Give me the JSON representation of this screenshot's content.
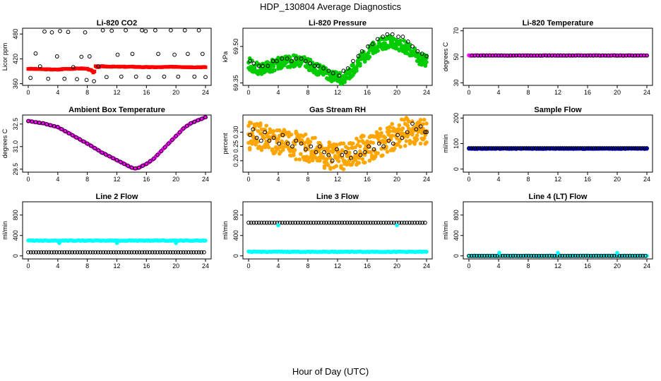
{
  "figure": {
    "title": "HDP_130804  Average Diagnostics",
    "xlabel": "Hour of Day (UTC)"
  },
  "colors": {
    "red": "#ff0000",
    "green": "#00cc00",
    "magenta": "#ff00ff",
    "orange": "#ffa500",
    "blue": "#0000ff",
    "cyan": "#00ffff",
    "black": "#000000"
  },
  "chart_data": [
    {
      "type": "scatter",
      "title": "Li-820 CO2",
      "ylabel": "Licor ppm",
      "x_ticks": [
        "0",
        "4",
        "8",
        "12",
        "16",
        "20",
        "24"
      ],
      "xlim": [
        0,
        24
      ],
      "y_ticks": [
        {
          "v": 360,
          "label": "360"
        },
        {
          "v": 420,
          "label": "420"
        },
        {
          "v": 480,
          "label": "480"
        }
      ],
      "ylim": [
        356,
        494
      ],
      "series": [
        {
          "color": "red",
          "dense": true,
          "shape": "square",
          "x": [
            0,
            2,
            4,
            5,
            6,
            7,
            8,
            8.6,
            8.9,
            9.1,
            9.3,
            10,
            12,
            14,
            16,
            18,
            20,
            22,
            24
          ],
          "y": [
            396,
            395,
            394,
            396,
            396,
            397,
            396,
            392,
            384,
            402,
            400,
            402,
            401,
            401,
            400,
            400,
            401,
            400,
            400
          ]
        },
        {
          "color": "black",
          "dense": false,
          "shape": "circle",
          "x": [
            0.3,
            1,
            1.6,
            2.2,
            2.7,
            3.2,
            3.9,
            4.3,
            4.9,
            5.4,
            6.1,
            6.6,
            7.2,
            7.7,
            7.9,
            8.3,
            8.9,
            9.5,
            10.1,
            10.6,
            11.3,
            12.1,
            12.6,
            13.2,
            14.1,
            14.6,
            15.4,
            15.9,
            16.3,
            17.2,
            17.6,
            18.4,
            19.3,
            19.8,
            20.3,
            21.2,
            21.6,
            22.5,
            23.1,
            23.6,
            24
          ],
          "y": [
            374,
            433,
            402,
            486,
            372,
            484,
            426,
            487,
            372,
            485,
            400,
            371,
            425,
            484,
            369,
            426,
            366,
            402,
            489,
            376,
            488,
            430,
            377,
            489,
            432,
            377,
            489,
            487,
            376,
            489,
            432,
            377,
            489,
            430,
            377,
            489,
            432,
            377,
            489,
            432,
            376
          ]
        }
      ]
    },
    {
      "type": "scatter",
      "title": "Li-820 Pressure",
      "ylabel": "kPa",
      "x_ticks": [
        "0",
        "4",
        "8",
        "12",
        "16",
        "20",
        "24"
      ],
      "xlim": [
        0,
        24
      ],
      "y_ticks": [
        {
          "v": 69.35,
          "label": "69.35"
        },
        {
          "v": 69.5,
          "label": "69.50"
        }
      ],
      "ylim": [
        69.34,
        69.575
      ],
      "series": [
        {
          "color": "green",
          "dense": true,
          "shape": "circle",
          "band": 0.025,
          "x": [
            0,
            1,
            2,
            3,
            4,
            5,
            6,
            7,
            8,
            9,
            10,
            11,
            12,
            13,
            14,
            15,
            16,
            17,
            18,
            19,
            20,
            21,
            22,
            23,
            24
          ],
          "y": [
            69.43,
            69.41,
            69.41,
            69.42,
            69.43,
            69.44,
            69.44,
            69.44,
            69.43,
            69.41,
            69.4,
            69.38,
            69.37,
            69.37,
            69.4,
            69.44,
            69.47,
            69.5,
            69.51,
            69.52,
            69.51,
            69.5,
            69.48,
            69.45,
            69.44
          ]
        },
        {
          "color": "black",
          "dense": false,
          "shape": "circle",
          "x": [
            0.2,
            0.7,
            1.4,
            1.9,
            2.6,
            3.3,
            3.8,
            4.5,
            5.2,
            5.8,
            6.4,
            7.1,
            7.7,
            8.3,
            8.9,
            9.4,
            10.1,
            10.8,
            11.4,
            12.2,
            12.8,
            13.4,
            14.1,
            14.8,
            15.3,
            16.1,
            16.7,
            17.4,
            18.1,
            18.7,
            19.4,
            20.2,
            20.8,
            21.5,
            22.1,
            22.8,
            23.4,
            24
          ],
          "y": [
            69.44,
            69.43,
            69.42,
            69.42,
            69.42,
            69.44,
            69.44,
            69.45,
            69.45,
            69.44,
            69.45,
            69.45,
            69.44,
            69.43,
            69.42,
            69.42,
            69.41,
            69.4,
            69.39,
            69.38,
            69.4,
            69.41,
            69.44,
            69.46,
            69.48,
            69.5,
            69.51,
            69.53,
            69.54,
            69.55,
            69.55,
            69.54,
            69.54,
            69.52,
            69.5,
            69.48,
            69.47,
            69.46
          ]
        }
      ]
    },
    {
      "type": "scatter",
      "title": "Li-820 Temperature",
      "ylabel": "degrees C",
      "x_ticks": [
        "0",
        "4",
        "8",
        "12",
        "16",
        "20",
        "24"
      ],
      "xlim": [
        0,
        24
      ],
      "y_ticks": [
        {
          "v": 30,
          "label": "30"
        },
        {
          "v": 50,
          "label": "50"
        },
        {
          "v": 70,
          "label": "70"
        }
      ],
      "ylim": [
        28,
        72
      ],
      "series": [
        {
          "color": "magenta",
          "dense": true,
          "shape": "circle",
          "x": [
            0,
            24
          ],
          "y": [
            51,
            51
          ]
        },
        {
          "color": "black",
          "dense": false,
          "shape": "circle",
          "step": 0.4,
          "x": [
            0.4,
            24
          ],
          "y": [
            51,
            51
          ]
        }
      ]
    },
    {
      "type": "scatter",
      "title": "Ambient Box Temperature",
      "ylabel": "degrees C",
      "x_ticks": [
        "0",
        "4",
        "8",
        "12",
        "16",
        "20",
        "24"
      ],
      "xlim": [
        0,
        24
      ],
      "y_ticks": [
        {
          "v": 29.5,
          "label": "29.5"
        },
        {
          "v": 31,
          "label": "31.0"
        },
        {
          "v": 32.5,
          "label": "32.5"
        }
      ],
      "ylim": [
        29.3,
        33.1
      ],
      "series": [
        {
          "color": "magenta",
          "dense": true,
          "shape": "circle",
          "x": [
            0,
            2,
            4,
            6,
            8,
            10,
            12,
            13,
            14,
            14.5,
            15,
            16,
            17,
            18,
            19,
            20,
            21,
            22,
            23,
            24
          ],
          "y": [
            32.7,
            32.55,
            32.3,
            31.75,
            31.2,
            30.6,
            30.1,
            29.85,
            29.6,
            29.55,
            29.6,
            29.85,
            30.2,
            30.7,
            31.2,
            31.7,
            32.2,
            32.55,
            32.75,
            32.95
          ]
        },
        {
          "color": "black",
          "dense": false,
          "shape": "circle",
          "step": 0.5,
          "x": [
            0,
            2,
            4,
            6,
            8,
            10,
            12,
            13,
            14,
            14.5,
            15,
            16,
            17,
            18,
            19,
            20,
            21,
            22,
            23,
            24
          ],
          "y": [
            32.7,
            32.55,
            32.3,
            31.75,
            31.2,
            30.6,
            30.1,
            29.85,
            29.6,
            29.55,
            29.6,
            29.85,
            30.2,
            30.7,
            31.2,
            31.7,
            32.2,
            32.55,
            32.75,
            32.95
          ]
        }
      ]
    },
    {
      "type": "scatter",
      "title": "Gas Stream RH",
      "ylabel": "percent",
      "x_ticks": [
        "0",
        "4",
        "8",
        "12",
        "16",
        "20",
        "24"
      ],
      "xlim": [
        0,
        24
      ],
      "y_ticks": [
        {
          "v": 0.2,
          "label": "0.20"
        },
        {
          "v": 0.25,
          "label": "0.25"
        },
        {
          "v": 0.3,
          "label": "0.30"
        }
      ],
      "ylim": [
        0.16,
        0.36
      ],
      "series": [
        {
          "color": "orange",
          "dense": true,
          "shape": "circle",
          "band": 0.05,
          "x": [
            0,
            2,
            4,
            6,
            8,
            10,
            11,
            12,
            13,
            14,
            16,
            18,
            20,
            22,
            24
          ],
          "y": [
            0.285,
            0.28,
            0.27,
            0.255,
            0.245,
            0.225,
            0.215,
            0.21,
            0.215,
            0.225,
            0.245,
            0.265,
            0.29,
            0.31,
            0.3
          ]
        },
        {
          "color": "black",
          "dense": false,
          "shape": "circle",
          "x": [
            0.2,
            0.6,
            1.1,
            1.7,
            2.2,
            2.8,
            3.4,
            4.1,
            4.6,
            5.3,
            5.9,
            6.4,
            7.1,
            7.7,
            8.4,
            9.1,
            9.6,
            10.2,
            10.8,
            11.3,
            11.9,
            12.6,
            13.1,
            13.8,
            14.4,
            15.1,
            15.7,
            16.2,
            16.9,
            17.6,
            18.2,
            18.9,
            19.5,
            20.1,
            20.7,
            21.4,
            22.1,
            22.6,
            23.2,
            23.8,
            24
          ],
          "y": [
            0.29,
            0.31,
            0.28,
            0.27,
            0.3,
            0.27,
            0.28,
            0.26,
            0.29,
            0.26,
            0.25,
            0.27,
            0.26,
            0.24,
            0.25,
            0.23,
            0.25,
            0.23,
            0.22,
            0.2,
            0.24,
            0.22,
            0.23,
            0.21,
            0.23,
            0.22,
            0.23,
            0.25,
            0.24,
            0.26,
            0.25,
            0.27,
            0.26,
            0.29,
            0.28,
            0.3,
            0.33,
            0.31,
            0.32,
            0.3,
            0.3
          ]
        }
      ]
    },
    {
      "type": "scatter",
      "title": "Sample Flow",
      "ylabel": "ml/min",
      "x_ticks": [
        "0",
        "4",
        "8",
        "12",
        "16",
        "20",
        "24"
      ],
      "xlim": [
        0,
        24
      ],
      "y_ticks": [
        {
          "v": 0,
          "label": "0"
        },
        {
          "v": 100,
          "label": "100"
        },
        {
          "v": 200,
          "label": "200"
        }
      ],
      "ylim": [
        -12,
        212
      ],
      "series": [
        {
          "color": "blue",
          "dense": true,
          "shape": "circle",
          "x": [
            0,
            24
          ],
          "y": [
            80,
            80
          ]
        },
        {
          "color": "black",
          "dense": false,
          "shape": "circle",
          "step": 0.3,
          "x": [
            0,
            24
          ],
          "y": [
            82,
            82
          ]
        }
      ]
    },
    {
      "type": "scatter",
      "title": "Line 2 Flow",
      "ylabel": "ml/min",
      "x_ticks": [
        "0",
        "4",
        "8",
        "12",
        "16",
        "20",
        "24"
      ],
      "xlim": [
        0,
        24
      ],
      "y_ticks": [
        {
          "v": 0,
          "label": "0"
        },
        {
          "v": 400,
          "label": "400"
        },
        {
          "v": 800,
          "label": "800"
        }
      ],
      "ylim": [
        -60,
        1060
      ],
      "series": [
        {
          "color": "cyan",
          "dense": true,
          "shape": "circle",
          "x": [
            0,
            24
          ],
          "y": [
            300,
            300
          ]
        },
        {
          "color": "black",
          "dense": false,
          "shape": "circle",
          "step": 0.35,
          "x": [
            0,
            24
          ],
          "y": [
            70,
            70
          ]
        }
      ]
    },
    {
      "type": "scatter",
      "title": "Line 3 Flow",
      "ylabel": "ml/min",
      "x_ticks": [
        "0",
        "4",
        "8",
        "12",
        "16",
        "20",
        "24"
      ],
      "xlim": [
        0,
        24
      ],
      "y_ticks": [
        {
          "v": 0,
          "label": "0"
        },
        {
          "v": 400,
          "label": "400"
        },
        {
          "v": 800,
          "label": "800"
        }
      ],
      "ylim": [
        -60,
        1060
      ],
      "series": [
        {
          "color": "cyan",
          "dense": true,
          "shape": "circle",
          "x": [
            0,
            24
          ],
          "y": [
            80,
            80
          ]
        },
        {
          "color": "black",
          "dense": false,
          "shape": "circle",
          "step": 0.35,
          "x": [
            0,
            24
          ],
          "y": [
            650,
            650
          ]
        }
      ]
    },
    {
      "type": "scatter",
      "title": "Line 4 (LT) Flow",
      "ylabel": "ml/min",
      "x_ticks": [
        "0",
        "4",
        "8",
        "12",
        "16",
        "20",
        "24"
      ],
      "xlim": [
        0,
        24
      ],
      "y_ticks": [
        {
          "v": 0,
          "label": "0"
        },
        {
          "v": 400,
          "label": "400"
        },
        {
          "v": 800,
          "label": "800"
        }
      ],
      "ylim": [
        -60,
        1060
      ],
      "series": [
        {
          "color": "cyan",
          "dense": true,
          "shape": "circle",
          "x": [
            0,
            24
          ],
          "y": [
            0,
            0
          ]
        },
        {
          "color": "black",
          "dense": false,
          "shape": "circle",
          "step": 0.35,
          "x": [
            0,
            24
          ],
          "y": [
            0,
            0
          ]
        }
      ]
    }
  ]
}
